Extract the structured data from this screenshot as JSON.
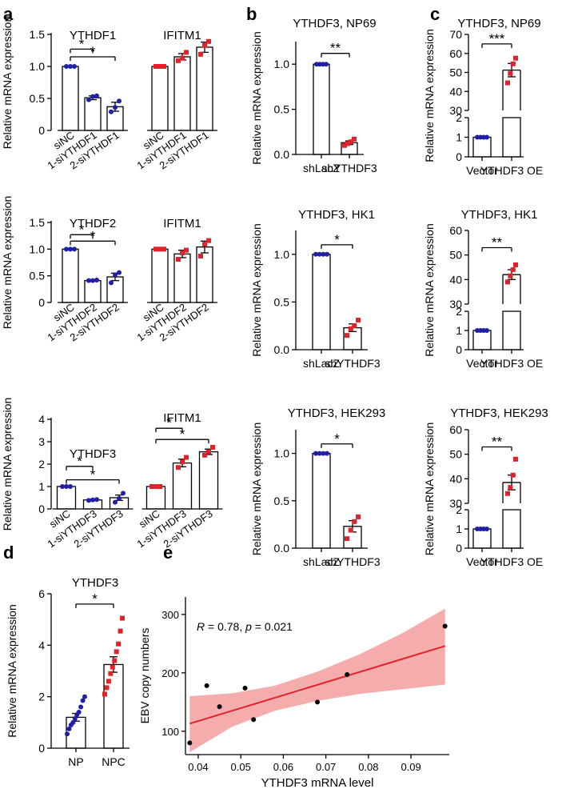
{
  "figure_title": "",
  "panel_letters": [
    "a",
    "b",
    "c",
    "d",
    "e"
  ],
  "colors": {
    "blue": "#1f1fa8",
    "red": "#e0222a",
    "line": "#000000",
    "ci_fill": "#f4a3a3",
    "fit_line": "#e0222a"
  },
  "chart_data": [
    {
      "id": "a1",
      "type": "bar",
      "ylabel": "Relative mRNA expression",
      "ylim": [
        0,
        1.5
      ],
      "ticks": [
        "0",
        "0.5",
        "1.0",
        "1.5"
      ],
      "tickVals": [
        0,
        0.5,
        1.0,
        1.5
      ],
      "groups": [
        {
          "title": "YTHDF1",
          "categories": [
            "siNC",
            "1-siYTHDF1",
            "2-siYTHDF1"
          ],
          "values": [
            1.0,
            0.51,
            0.37
          ],
          "err": [
            0,
            0.03,
            0.07
          ],
          "color": "blue",
          "points": [
            [
              1.0,
              1.0,
              1.0
            ],
            [
              0.48,
              0.53,
              0.54
            ],
            [
              0.29,
              0.36,
              0.46
            ]
          ],
          "sig": [
            {
              "from": 0,
              "to": 1,
              "y": 1.27,
              "label": "*"
            },
            {
              "from": 0,
              "to": 2,
              "y": 1.15,
              "label": "*"
            }
          ]
        },
        {
          "title": "IFITM1",
          "categories": [
            "siNC",
            "1-siYTHDF1",
            "2-siYTHDF1"
          ],
          "values": [
            1.0,
            1.15,
            1.3
          ],
          "err": [
            0,
            0.05,
            0.08
          ],
          "color": "red",
          "points": [
            [
              1.0,
              1.0,
              1.0
            ],
            [
              1.09,
              1.13,
              1.22
            ],
            [
              1.19,
              1.33,
              1.39
            ]
          ],
          "sig": []
        }
      ]
    },
    {
      "id": "a2",
      "type": "bar",
      "ylabel": "Relative mRNA expression",
      "ylim": [
        0,
        1.5
      ],
      "ticks": [
        "0",
        "0.5",
        "1.0",
        "1.5"
      ],
      "tickVals": [
        0,
        0.5,
        1.0,
        1.5
      ],
      "groups": [
        {
          "title": "YTHDF2",
          "categories": [
            "siNC",
            "1-siYTHDF2",
            "2-siYTHDF2"
          ],
          "values": [
            1.0,
            0.41,
            0.48
          ],
          "err": [
            0,
            0.01,
            0.07
          ],
          "color": "blue",
          "points": [
            [
              1.0,
              1.0,
              1.0
            ],
            [
              0.41,
              0.41,
              0.42
            ],
            [
              0.37,
              0.52,
              0.56
            ]
          ],
          "sig": [
            {
              "from": 0,
              "to": 1,
              "y": 1.27,
              "label": "*"
            },
            {
              "from": 0,
              "to": 2,
              "y": 1.15,
              "label": "*"
            }
          ]
        },
        {
          "title": "IFITM1",
          "categories": [
            "siNC",
            "1-siYTHDF2",
            "2-siYTHDF2"
          ],
          "values": [
            1.0,
            0.91,
            1.04
          ],
          "err": [
            0,
            0.07,
            0.11
          ],
          "color": "red",
          "points": [
            [
              1.0,
              1.0,
              1.0
            ],
            [
              0.81,
              0.93,
              0.98
            ],
            [
              0.87,
              1.09,
              1.16
            ]
          ],
          "sig": []
        }
      ]
    },
    {
      "id": "a3",
      "type": "bar",
      "ylabel": "Relative mRNA expression",
      "ylim": [
        0,
        4
      ],
      "ticks": [
        "0",
        "1",
        "2",
        "3",
        "4"
      ],
      "tickVals": [
        0,
        1,
        2,
        3,
        4
      ],
      "groups": [
        {
          "title": "YTHDF3",
          "categories": [
            "siNC",
            "1-siYTHDF3",
            "2-siYTHDF3"
          ],
          "values": [
            1.0,
            0.4,
            0.5
          ],
          "err": [
            0,
            0.02,
            0.12
          ],
          "color": "blue",
          "points": [
            [
              1.0,
              1.0,
              1.0
            ],
            [
              0.38,
              0.4,
              0.42
            ],
            [
              0.3,
              0.47,
              0.7
            ]
          ],
          "sig": [
            {
              "from": 0,
              "to": 1,
              "y": 1.9,
              "label": "*"
            },
            {
              "from": 0,
              "to": 2,
              "y": 1.3,
              "label": "*"
            }
          ]
        },
        {
          "title": "IFITM1",
          "categories": [
            "siNC",
            "1-siYTHDF3",
            "2-siYTHDF3"
          ],
          "values": [
            1.0,
            2.05,
            2.55
          ],
          "err": [
            0,
            0.17,
            0.12
          ],
          "color": "red",
          "points": [
            [
              1.0,
              1.0,
              1.0
            ],
            [
              1.85,
              2.1,
              2.3
            ],
            [
              2.4,
              2.55,
              2.75
            ]
          ],
          "sig": [
            {
              "from": 0,
              "to": 1,
              "y": 3.6,
              "label": "*"
            },
            {
              "from": 0,
              "to": 2,
              "y": 3.1,
              "label": "*"
            }
          ]
        }
      ]
    },
    {
      "id": "b1",
      "type": "bar",
      "title": "YTHDF3, NP69",
      "ylabel": "Relative mRNA expression",
      "ylim": [
        0,
        1.25
      ],
      "ticks": [
        "0.0",
        "0.5",
        "1.0"
      ],
      "tickVals": [
        0,
        0.5,
        1.0
      ],
      "categories": [
        "shLacZ",
        "shYTHDF3"
      ],
      "values": [
        1.0,
        0.13
      ],
      "err": [
        0,
        0.02
      ],
      "points": [
        [
          1.0,
          1.0,
          1.0,
          1.0
        ],
        [
          0.1,
          0.12,
          0.14,
          0.17
        ]
      ],
      "sig": [
        {
          "from": 0,
          "to": 1,
          "y": 1.12,
          "label": "**"
        }
      ]
    },
    {
      "id": "b2",
      "type": "bar",
      "title": "YTHDF3, HK1",
      "ylabel": "Relative mRNA expression",
      "ylim": [
        0,
        1.25
      ],
      "ticks": [
        "0.0",
        "0.5",
        "1.0"
      ],
      "tickVals": [
        0,
        0.5,
        1.0
      ],
      "categories": [
        "shLacZ",
        "shYTHDF3"
      ],
      "values": [
        1.0,
        0.23
      ],
      "err": [
        0,
        0.04
      ],
      "points": [
        [
          1.0,
          1.0,
          1.0,
          1.0
        ],
        [
          0.15,
          0.22,
          0.25,
          0.31
        ]
      ],
      "sig": [
        {
          "from": 0,
          "to": 1,
          "y": 1.1,
          "label": "*"
        }
      ]
    },
    {
      "id": "b3",
      "type": "bar",
      "title": "YTHDF3, HEK293",
      "ylabel": "Relative mRNA expression",
      "ylim": [
        0,
        1.25
      ],
      "ticks": [
        "0.0",
        "0.5",
        "1.0"
      ],
      "tickVals": [
        0,
        0.5,
        1.0
      ],
      "categories": [
        "shLacZ",
        "shYTHDF3"
      ],
      "values": [
        1.0,
        0.23
      ],
      "err": [
        0,
        0.06
      ],
      "points": [
        [
          1.0,
          1.0,
          1.0,
          1.0
        ],
        [
          0.1,
          0.19,
          0.28,
          0.33
        ]
      ],
      "sig": [
        {
          "from": 0,
          "to": 1,
          "y": 1.1,
          "label": "*"
        }
      ]
    },
    {
      "id": "c1",
      "type": "bar",
      "title": "YTHDF3, NP69",
      "ylabel": "Relative mRNA expression",
      "axis_break": true,
      "upper_ylim": [
        30,
        70
      ],
      "upper_ticks": [
        "30",
        "40",
        "50",
        "60",
        "70"
      ],
      "lower_ylim": [
        0,
        2
      ],
      "lower_ticks": [
        "0",
        "1",
        "2"
      ],
      "categories": [
        "Vector",
        "YTHDF3 OE"
      ],
      "values": [
        1.0,
        51.2
      ],
      "err": [
        0,
        3.5
      ],
      "points": [
        [
          1.0,
          1.0,
          1.0,
          1.0
        ],
        [
          44.5,
          49.5,
          54.5,
          57.5
        ]
      ],
      "sig": [
        {
          "from": 0,
          "to": 1,
          "y": 65,
          "label": "***"
        }
      ]
    },
    {
      "id": "c2",
      "type": "bar",
      "title": "YTHDF3, HK1",
      "ylabel": "Relative mRNA expression",
      "axis_break": true,
      "upper_ylim": [
        30,
        60
      ],
      "upper_ticks": [
        "30",
        "40",
        "50",
        "60"
      ],
      "lower_ylim": [
        0,
        2
      ],
      "lower_ticks": [
        "0",
        "1",
        "2"
      ],
      "categories": [
        "Vector",
        "YTHDF3 OE"
      ],
      "values": [
        1.0,
        42.0
      ],
      "err": [
        0,
        2.0
      ],
      "points": [
        [
          1.0,
          1.0,
          1.0,
          1.0
        ],
        [
          39.0,
          41.5,
          44.0,
          46.0
        ]
      ],
      "sig": [
        {
          "from": 0,
          "to": 1,
          "y": 53,
          "label": "**"
        }
      ]
    },
    {
      "id": "c3",
      "type": "bar",
      "title": "YTHDF3, HEK293",
      "ylabel": "Relative mRNA expression",
      "axis_break": true,
      "upper_ylim": [
        30,
        60
      ],
      "upper_ticks": [
        "30",
        "40",
        "50",
        "60"
      ],
      "lower_ylim": [
        0,
        2
      ],
      "lower_ticks": [
        "0",
        "1",
        "2"
      ],
      "categories": [
        "Vector",
        "YTHDF3 OE"
      ],
      "values": [
        1.0,
        38.5
      ],
      "err": [
        0,
        3.0
      ],
      "points": [
        [
          1.0,
          1.0,
          1.0,
          1.0
        ],
        [
          34.0,
          36.5,
          41.5,
          48.0
        ]
      ],
      "sig": [
        {
          "from": 0,
          "to": 1,
          "y": 53,
          "label": "**"
        }
      ]
    },
    {
      "id": "d",
      "type": "bar",
      "title": "YTHDF3",
      "ylabel": "Relative mRNA expression",
      "ylim": [
        0,
        6
      ],
      "ticks": [
        "0",
        "2",
        "4",
        "6"
      ],
      "tickVals": [
        0,
        2,
        4,
        6
      ],
      "categories": [
        "NP",
        "NPC"
      ],
      "values": [
        1.2,
        3.25
      ],
      "err": [
        0.15,
        0.3
      ],
      "points": [
        [
          0.55,
          0.75,
          0.9,
          1.0,
          1.15,
          1.3,
          1.4,
          1.6,
          1.85,
          2.0
        ],
        [
          2.1,
          2.35,
          2.6,
          2.9,
          3.15,
          3.4,
          3.75,
          4.05,
          4.55,
          5.05
        ]
      ],
      "sig": [
        {
          "from": 0,
          "to": 1,
          "y": 5.6,
          "label": "*"
        }
      ]
    },
    {
      "id": "e",
      "type": "scatter",
      "xlabel": "YTHDF3 mRNA level",
      "ylabel": "EBV copy numbers",
      "xlim": [
        0.037,
        0.099
      ],
      "ylim": [
        60,
        330
      ],
      "xticks": [
        "0.04",
        "0.05",
        "0.06",
        "0.07",
        "0.08",
        "0.09"
      ],
      "xtickVals": [
        0.04,
        0.05,
        0.06,
        0.07,
        0.08,
        0.09
      ],
      "yticks": [
        "100",
        "200",
        "300"
      ],
      "ytickVals": [
        100,
        200,
        300
      ],
      "x": [
        0.038,
        0.042,
        0.045,
        0.051,
        0.053,
        0.068,
        0.075,
        0.098
      ],
      "y": [
        80,
        178,
        142,
        174,
        120,
        150,
        197,
        280
      ],
      "fit": {
        "x0": 0.038,
        "y0": 113,
        "x1": 0.098,
        "y1": 246
      },
      "ci_upper": [
        [
          0.038,
          160
        ],
        [
          0.048,
          165
        ],
        [
          0.058,
          178
        ],
        [
          0.068,
          202
        ],
        [
          0.078,
          232
        ],
        [
          0.088,
          268
        ],
        [
          0.098,
          310
        ]
      ],
      "ci_lower": [
        [
          0.038,
          64
        ],
        [
          0.048,
          108
        ],
        [
          0.058,
          135
        ],
        [
          0.068,
          152
        ],
        [
          0.078,
          164
        ],
        [
          0.088,
          172
        ],
        [
          0.098,
          180
        ]
      ],
      "annotation": {
        "r_label": "R",
        "r_text": " = 0.78, ",
        "p_label": "p",
        "p_text": " = 0.021"
      }
    }
  ]
}
